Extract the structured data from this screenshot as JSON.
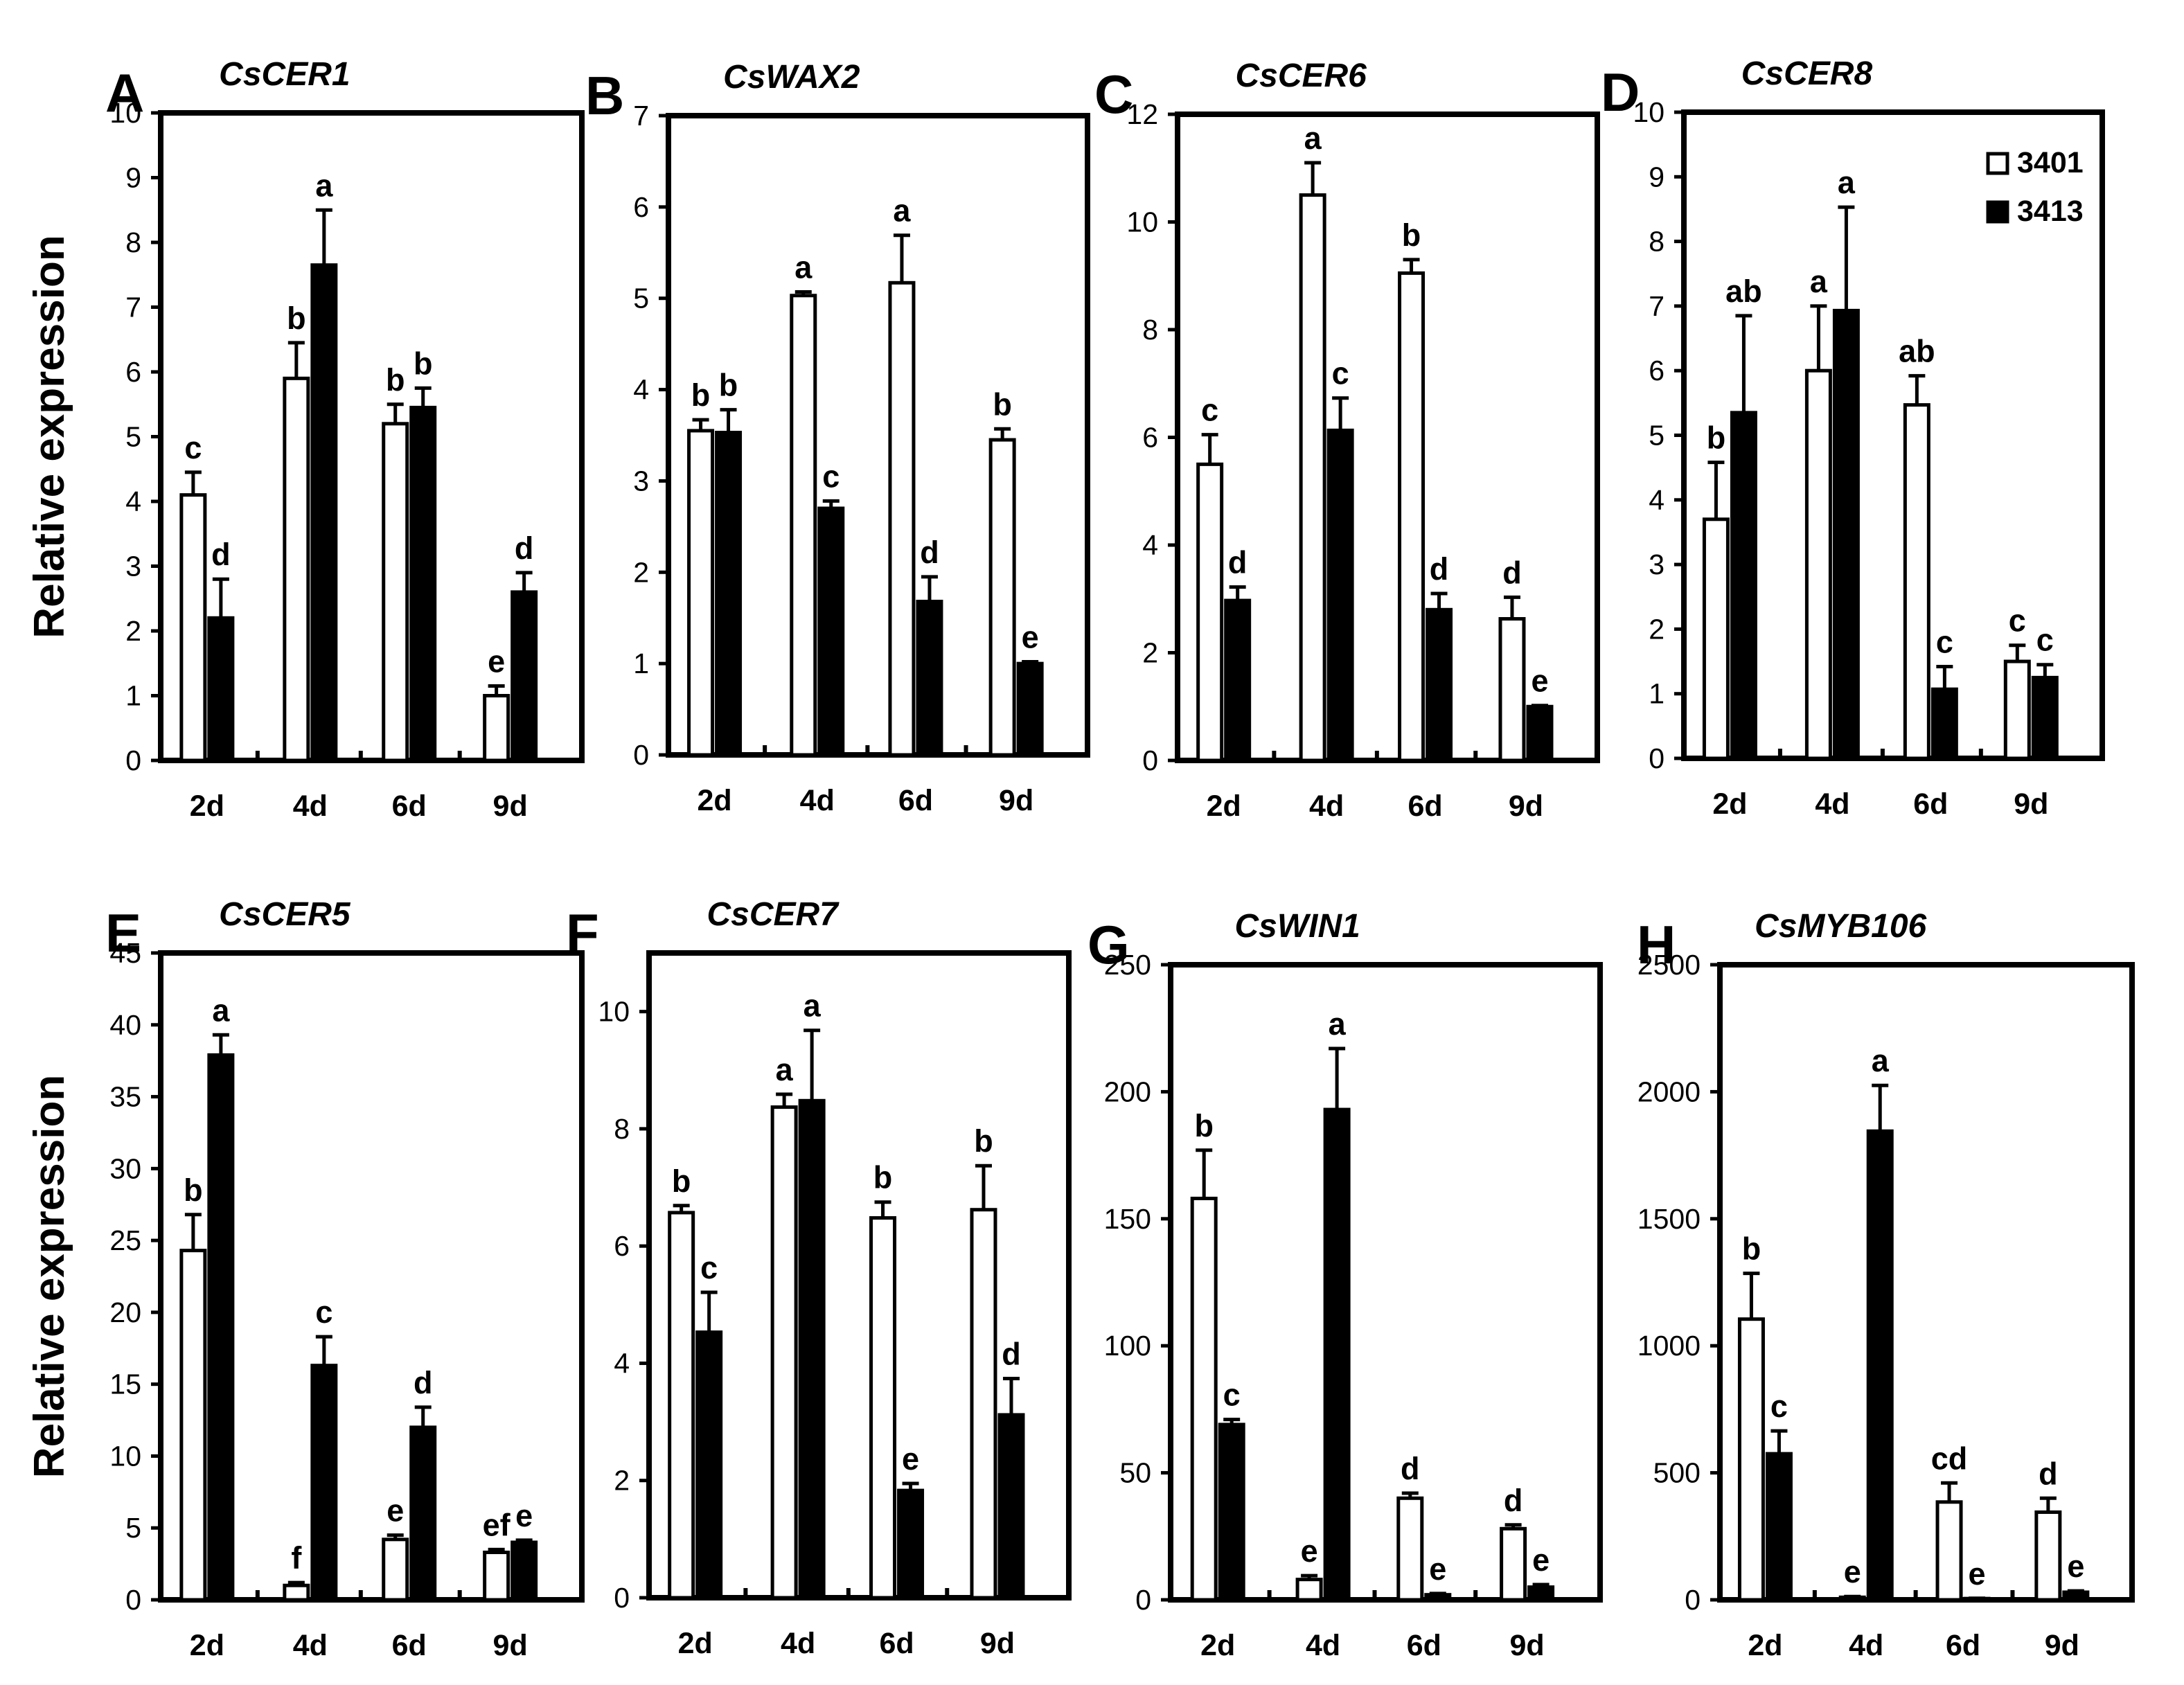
{
  "figure": {
    "ylabel": "Relative expression",
    "legend": {
      "series_a": "3401",
      "series_b": "3413"
    },
    "colors": {
      "series_a": "#ffffff",
      "series_b": "#000000",
      "stroke": "#000000"
    }
  },
  "chart_data": [
    {
      "type": "bar",
      "panel": "A",
      "title": "CsCER1",
      "ylabel": "Relative expression",
      "categories": [
        "2d",
        "4d",
        "6d",
        "9d"
      ],
      "ylim": [
        0,
        10
      ],
      "yticks": [
        0,
        1,
        2,
        3,
        4,
        5,
        6,
        7,
        8,
        9,
        10
      ],
      "series": [
        {
          "name": "3401",
          "values": [
            4.1,
            5.9,
            5.2,
            1.0
          ],
          "errors": [
            0.35,
            0.55,
            0.3,
            0.15
          ],
          "labels": [
            "c",
            "b",
            "b",
            "e"
          ]
        },
        {
          "name": "3413",
          "values": [
            2.2,
            7.65,
            5.45,
            2.6
          ],
          "errors": [
            0.6,
            0.85,
            0.3,
            0.3
          ],
          "labels": [
            "d",
            "a",
            "b",
            "d"
          ]
        }
      ]
    },
    {
      "type": "bar",
      "panel": "B",
      "title": "CsWAX2",
      "ylabel": "",
      "categories": [
        "2d",
        "4d",
        "6d",
        "9d"
      ],
      "ylim": [
        0,
        7
      ],
      "yticks": [
        0,
        1,
        2,
        3,
        4,
        5,
        6,
        7
      ],
      "series": [
        {
          "name": "3401",
          "values": [
            3.55,
            5.03,
            5.17,
            3.45
          ],
          "errors": [
            0.12,
            0.04,
            0.52,
            0.12
          ],
          "labels": [
            "b",
            "a",
            "a",
            "b"
          ]
        },
        {
          "name": "3413",
          "values": [
            3.53,
            2.7,
            1.68,
            1.0
          ],
          "errors": [
            0.25,
            0.08,
            0.27,
            0.02
          ],
          "labels": [
            "b",
            "c",
            "d",
            "e"
          ]
        }
      ]
    },
    {
      "type": "bar",
      "panel": "C",
      "title": "CsCER6",
      "ylabel": "",
      "categories": [
        "2d",
        "4d",
        "6d",
        "9d"
      ],
      "ylim": [
        0,
        12
      ],
      "yticks": [
        0,
        2,
        4,
        6,
        8,
        10,
        12
      ],
      "series": [
        {
          "name": "3401",
          "values": [
            5.5,
            10.5,
            9.05,
            2.63
          ],
          "errors": [
            0.55,
            0.6,
            0.25,
            0.4
          ],
          "labels": [
            "c",
            "a",
            "b",
            "d"
          ]
        },
        {
          "name": "3413",
          "values": [
            2.97,
            6.13,
            2.8,
            1.0
          ],
          "errors": [
            0.25,
            0.6,
            0.3,
            0.02
          ],
          "labels": [
            "d",
            "c",
            "d",
            "e"
          ]
        }
      ]
    },
    {
      "type": "bar",
      "panel": "D",
      "title": "CsCER8",
      "ylabel": "",
      "categories": [
        "2d",
        "4d",
        "6d",
        "9d"
      ],
      "ylim": [
        0,
        10
      ],
      "yticks": [
        0,
        1,
        2,
        3,
        4,
        5,
        6,
        7,
        8,
        9,
        10
      ],
      "legend": [
        "3401",
        "3413"
      ],
      "series": [
        {
          "name": "3401",
          "values": [
            3.7,
            6.0,
            5.47,
            1.5
          ],
          "errors": [
            0.88,
            1.0,
            0.45,
            0.25
          ],
          "labels": [
            "b",
            "a",
            "ab",
            "c"
          ]
        },
        {
          "name": "3413",
          "values": [
            5.35,
            6.93,
            1.07,
            1.25
          ],
          "errors": [
            1.5,
            1.6,
            0.35,
            0.2
          ],
          "labels": [
            "ab",
            "a",
            "c",
            "c"
          ]
        }
      ]
    },
    {
      "type": "bar",
      "panel": "E",
      "title": "CsCER5",
      "ylabel": "Relative expression",
      "categories": [
        "2d",
        "4d",
        "6d",
        "9d"
      ],
      "ylim": [
        0,
        45
      ],
      "yticks": [
        0,
        5,
        10,
        15,
        20,
        25,
        30,
        35,
        40,
        45
      ],
      "series": [
        {
          "name": "3401",
          "values": [
            24.3,
            1.0,
            4.2,
            3.3
          ],
          "errors": [
            2.5,
            0.2,
            0.3,
            0.2
          ],
          "labels": [
            "b",
            "f",
            "e",
            "ef"
          ]
        },
        {
          "name": "3413",
          "values": [
            37.9,
            16.3,
            12.0,
            4.0
          ],
          "errors": [
            1.4,
            2.0,
            1.4,
            0.15
          ],
          "labels": [
            "a",
            "c",
            "d",
            "e"
          ]
        }
      ]
    },
    {
      "type": "bar",
      "panel": "F",
      "title": "CsCER7",
      "ylabel": "",
      "categories": [
        "2d",
        "4d",
        "6d",
        "9d"
      ],
      "ylim": [
        0,
        11
      ],
      "yticks": [
        0,
        2,
        4,
        6,
        8,
        10
      ],
      "series": [
        {
          "name": "3401",
          "values": [
            6.57,
            8.37,
            6.48,
            6.62
          ],
          "errors": [
            0.12,
            0.22,
            0.27,
            0.75
          ],
          "labels": [
            "b",
            "a",
            "b",
            "b"
          ]
        },
        {
          "name": "3413",
          "values": [
            4.53,
            8.48,
            1.83,
            3.12
          ],
          "errors": [
            0.68,
            1.2,
            0.12,
            0.62
          ],
          "labels": [
            "c",
            "a",
            "e",
            "d"
          ]
        }
      ]
    },
    {
      "type": "bar",
      "panel": "G",
      "title": "CsWIN1",
      "ylabel": "",
      "categories": [
        "2d",
        "4d",
        "6d",
        "9d"
      ],
      "ylim": [
        0,
        250
      ],
      "yticks": [
        0,
        50,
        100,
        150,
        200,
        250
      ],
      "series": [
        {
          "name": "3401",
          "values": [
            158,
            8,
            40,
            28
          ],
          "errors": [
            19,
            1.5,
            2,
            1.5
          ],
          "labels": [
            "b",
            "e",
            "d",
            "d"
          ]
        },
        {
          "name": "3413",
          "values": [
            69,
            193,
            2,
            5
          ],
          "errors": [
            2,
            24,
            0.5,
            1
          ],
          "labels": [
            "c",
            "a",
            "e",
            "e"
          ]
        }
      ]
    },
    {
      "type": "bar",
      "panel": "H",
      "title": "CsMYB106",
      "ylabel": "",
      "categories": [
        "2d",
        "4d",
        "6d",
        "9d"
      ],
      "ylim": [
        0,
        2500
      ],
      "yticks": [
        0,
        500,
        1000,
        1500,
        2000,
        2500
      ],
      "series": [
        {
          "name": "3401",
          "values": [
            1105,
            10,
            385,
            345
          ],
          "errors": [
            180,
            3,
            75,
            55
          ],
          "labels": [
            "b",
            "e",
            "cd",
            "d"
          ]
        },
        {
          "name": "3413",
          "values": [
            575,
            1845,
            5,
            30
          ],
          "errors": [
            90,
            180,
            1,
            5
          ],
          "labels": [
            "c",
            "a",
            "e",
            "e"
          ]
        }
      ]
    }
  ]
}
